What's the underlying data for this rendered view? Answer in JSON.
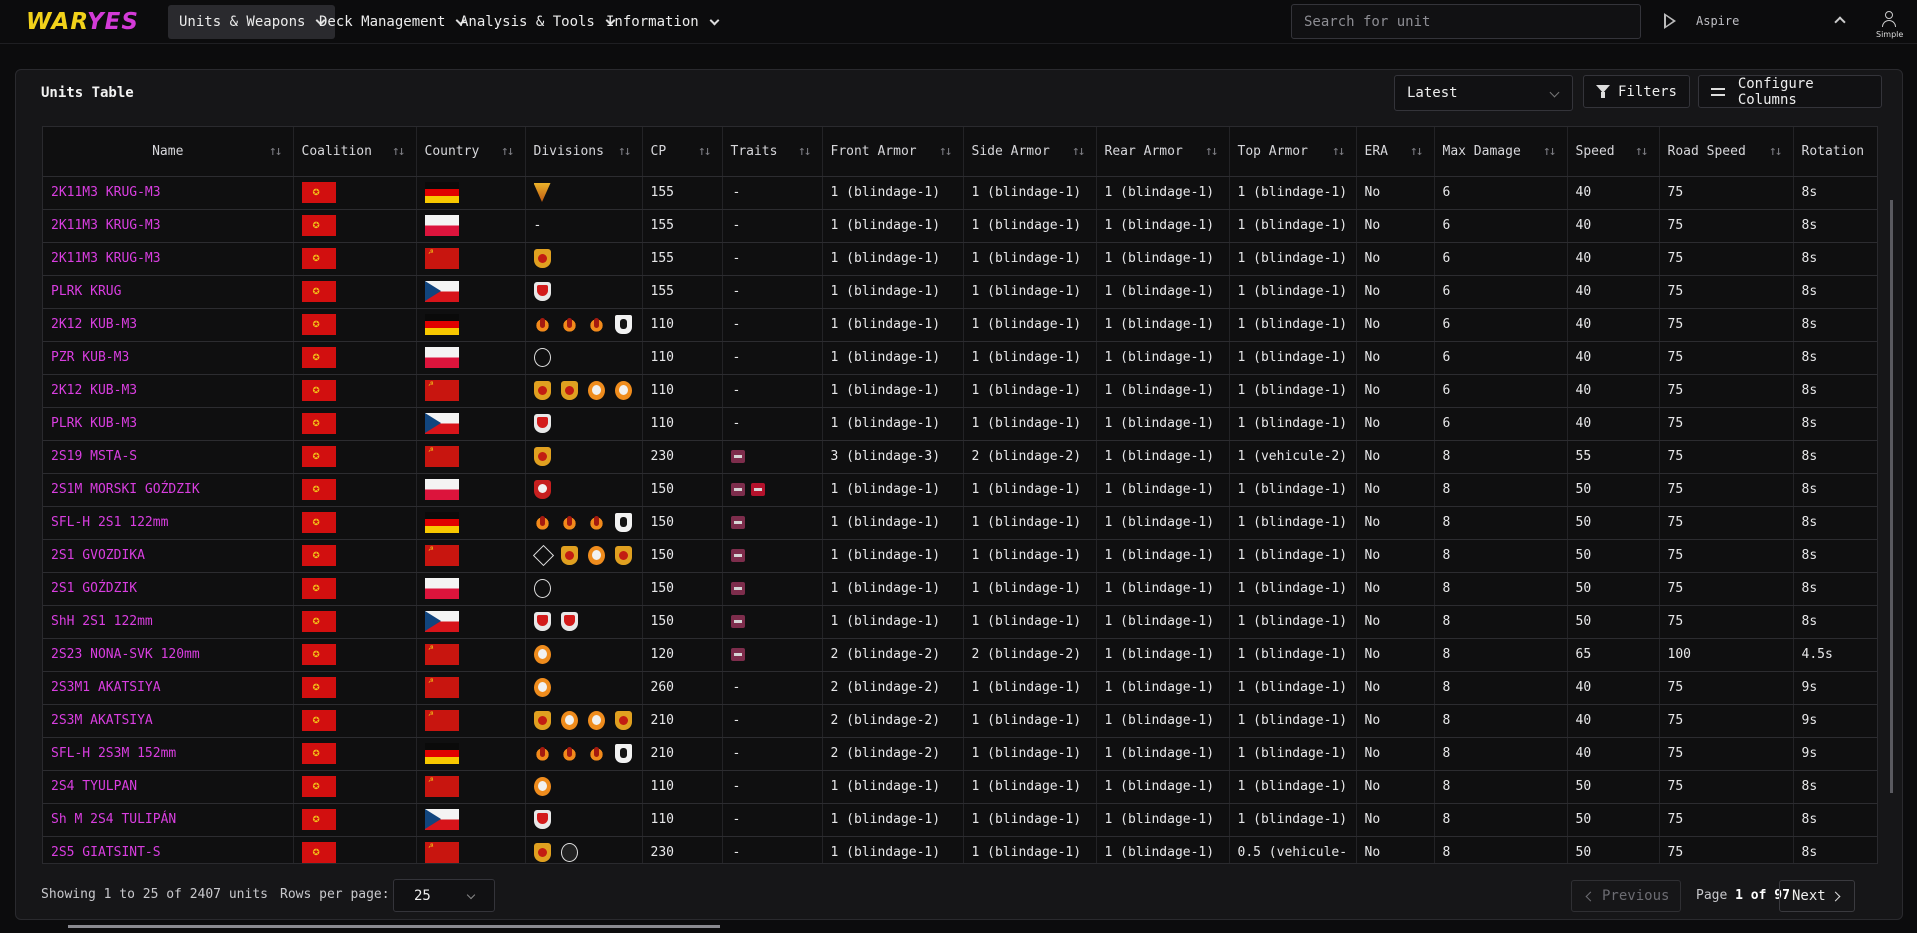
{
  "nav": {
    "logo_part1": "WAR",
    "logo_part2": "YES",
    "items": [
      {
        "label": "Units & Weapons"
      },
      {
        "label": "Deck Management"
      },
      {
        "label": "Analysis & Tools"
      },
      {
        "label": "Information"
      }
    ],
    "search_placeholder": "Search for unit",
    "aspire_label": "Aspire",
    "user_mode": "Simple"
  },
  "panel": {
    "title": "Units Table",
    "version_select": "Latest",
    "filters_label": "Filters",
    "configure_label": "Configure Columns"
  },
  "table": {
    "columns": [
      "Name",
      "Coalition",
      "Country",
      "Divisions",
      "CP",
      "Traits",
      "Front Armor",
      "Side Armor",
      "Rear Armor",
      "Top Armor",
      "ERA",
      "Max Damage",
      "Speed",
      "Road Speed",
      "Rotation"
    ],
    "rows": [
      {
        "name": "2K11M3 KRUG-M3",
        "country": "ddr",
        "divisions": [
          "tri"
        ],
        "cp": "155",
        "traits": [],
        "front": "1 (blindage-1)",
        "side": "1 (blindage-1)",
        "rear": "1 (blindage-1)",
        "top": "1 (blindage-1)",
        "era": "No",
        "dmg": "6",
        "speed": "40",
        "road": "75",
        "rot": "8s"
      },
      {
        "name": "2K11M3 KRUG-M3",
        "country": "pl",
        "divisions": [],
        "cp": "155",
        "traits": [],
        "front": "1 (blindage-1)",
        "side": "1 (blindage-1)",
        "rear": "1 (blindage-1)",
        "top": "1 (blindage-1)",
        "era": "No",
        "dmg": "6",
        "speed": "40",
        "road": "75",
        "rot": "8s"
      },
      {
        "name": "2K11M3 KRUG-M3",
        "country": "su",
        "divisions": [
          "shield"
        ],
        "cp": "155",
        "traits": [],
        "front": "1 (blindage-1)",
        "side": "1 (blindage-1)",
        "rear": "1 (blindage-1)",
        "top": "1 (blindage-1)",
        "era": "No",
        "dmg": "6",
        "speed": "40",
        "road": "75",
        "rot": "8s"
      },
      {
        "name": "PLRK KRUG",
        "country": "cs",
        "divisions": [
          "cz"
        ],
        "cp": "155",
        "traits": [],
        "front": "1 (blindage-1)",
        "side": "1 (blindage-1)",
        "rear": "1 (blindage-1)",
        "top": "1 (blindage-1)",
        "era": "No",
        "dmg": "6",
        "speed": "40",
        "road": "75",
        "rot": "8s"
      },
      {
        "name": "2K12 KUB-M3",
        "country": "ddr",
        "divisions": [
          "flame",
          "flame",
          "flame",
          "bear"
        ],
        "cp": "110",
        "traits": [],
        "front": "1 (blindage-1)",
        "side": "1 (blindage-1)",
        "rear": "1 (blindage-1)",
        "top": "1 (blindage-1)",
        "era": "No",
        "dmg": "6",
        "speed": "40",
        "road": "75",
        "rot": "8s"
      },
      {
        "name": "PZR KUB-M3",
        "country": "pl",
        "divisions": [
          "ring"
        ],
        "cp": "110",
        "traits": [],
        "front": "1 (blindage-1)",
        "side": "1 (blindage-1)",
        "rear": "1 (blindage-1)",
        "top": "1 (blindage-1)",
        "era": "No",
        "dmg": "6",
        "speed": "40",
        "road": "75",
        "rot": "8s"
      },
      {
        "name": "2K12 KUB-M3",
        "country": "su",
        "divisions": [
          "shield",
          "shield",
          "badge",
          "badge"
        ],
        "cp": "110",
        "traits": [],
        "front": "1 (blindage-1)",
        "side": "1 (blindage-1)",
        "rear": "1 (blindage-1)",
        "top": "1 (blindage-1)",
        "era": "No",
        "dmg": "6",
        "speed": "40",
        "road": "75",
        "rot": "8s"
      },
      {
        "name": "PLRK KUB-M3",
        "country": "cs",
        "divisions": [
          "cz"
        ],
        "cp": "110",
        "traits": [],
        "front": "1 (blindage-1)",
        "side": "1 (blindage-1)",
        "rear": "1 (blindage-1)",
        "top": "1 (blindage-1)",
        "era": "No",
        "dmg": "6",
        "speed": "40",
        "road": "75",
        "rot": "8s"
      },
      {
        "name": "2S19 MSTA-S",
        "country": "su",
        "divisions": [
          "shield"
        ],
        "cp": "230",
        "traits": [
          "t"
        ],
        "front": "3 (blindage-3)",
        "side": "2 (blindage-2)",
        "rear": "1 (blindage-1)",
        "top": "1 (vehicule-2)",
        "era": "No",
        "dmg": "8",
        "speed": "55",
        "road": "75",
        "rot": "8s"
      },
      {
        "name": "2S1M MORSKI GOŹDZIK",
        "country": "pl",
        "divisions": [
          "red"
        ],
        "cp": "150",
        "traits": [
          "t",
          "red"
        ],
        "front": "1 (blindage-1)",
        "side": "1 (blindage-1)",
        "rear": "1 (blindage-1)",
        "top": "1 (blindage-1)",
        "era": "No",
        "dmg": "8",
        "speed": "50",
        "road": "75",
        "rot": "8s"
      },
      {
        "name": "SFL-H 2S1 122mm",
        "country": "ddr",
        "divisions": [
          "flame",
          "flame",
          "flame",
          "bear"
        ],
        "cp": "150",
        "traits": [
          "t"
        ],
        "front": "1 (blindage-1)",
        "side": "1 (blindage-1)",
        "rear": "1 (blindage-1)",
        "top": "1 (blindage-1)",
        "era": "No",
        "dmg": "8",
        "speed": "50",
        "road": "75",
        "rot": "8s"
      },
      {
        "name": "2S1 GVOZDIKA",
        "country": "su",
        "divisions": [
          "diamond",
          "shield",
          "badge",
          "shield"
        ],
        "cp": "150",
        "traits": [
          "t"
        ],
        "front": "1 (blindage-1)",
        "side": "1 (blindage-1)",
        "rear": "1 (blindage-1)",
        "top": "1 (blindage-1)",
        "era": "No",
        "dmg": "8",
        "speed": "50",
        "road": "75",
        "rot": "8s"
      },
      {
        "name": "2S1 GOŹDZIK",
        "country": "pl",
        "divisions": [
          "ring"
        ],
        "cp": "150",
        "traits": [
          "t"
        ],
        "front": "1 (blindage-1)",
        "side": "1 (blindage-1)",
        "rear": "1 (blindage-1)",
        "top": "1 (blindage-1)",
        "era": "No",
        "dmg": "8",
        "speed": "50",
        "road": "75",
        "rot": "8s"
      },
      {
        "name": "ShH 2S1 122mm",
        "country": "cs",
        "divisions": [
          "cz",
          "cz"
        ],
        "cp": "150",
        "traits": [
          "t"
        ],
        "front": "1 (blindage-1)",
        "side": "1 (blindage-1)",
        "rear": "1 (blindage-1)",
        "top": "1 (blindage-1)",
        "era": "No",
        "dmg": "8",
        "speed": "50",
        "road": "75",
        "rot": "8s"
      },
      {
        "name": "2S23 NONA-SVK 120mm",
        "country": "su",
        "divisions": [
          "badge"
        ],
        "cp": "120",
        "traits": [
          "t"
        ],
        "front": "2 (blindage-2)",
        "side": "2 (blindage-2)",
        "rear": "1 (blindage-1)",
        "top": "1 (blindage-1)",
        "era": "No",
        "dmg": "8",
        "speed": "65",
        "road": "100",
        "rot": "4.5s"
      },
      {
        "name": "2S3M1 AKATSIYA",
        "country": "su",
        "divisions": [
          "badge"
        ],
        "cp": "260",
        "traits": [],
        "front": "2 (blindage-2)",
        "side": "1 (blindage-1)",
        "rear": "1 (blindage-1)",
        "top": "1 (blindage-1)",
        "era": "No",
        "dmg": "8",
        "speed": "40",
        "road": "75",
        "rot": "9s"
      },
      {
        "name": "2S3M AKATSIYA",
        "country": "su",
        "divisions": [
          "shield",
          "badge",
          "badge",
          "shield"
        ],
        "cp": "210",
        "traits": [],
        "front": "2 (blindage-2)",
        "side": "1 (blindage-1)",
        "rear": "1 (blindage-1)",
        "top": "1 (blindage-1)",
        "era": "No",
        "dmg": "8",
        "speed": "40",
        "road": "75",
        "rot": "9s"
      },
      {
        "name": "SFL-H 2S3M 152mm",
        "country": "ddr",
        "divisions": [
          "flame",
          "flame",
          "flame",
          "bear"
        ],
        "cp": "210",
        "traits": [],
        "front": "2 (blindage-2)",
        "side": "1 (blindage-1)",
        "rear": "1 (blindage-1)",
        "top": "1 (blindage-1)",
        "era": "No",
        "dmg": "8",
        "speed": "40",
        "road": "75",
        "rot": "9s"
      },
      {
        "name": "2S4 TYULPAN",
        "country": "su",
        "divisions": [
          "badge"
        ],
        "cp": "110",
        "traits": [],
        "front": "1 (blindage-1)",
        "side": "1 (blindage-1)",
        "rear": "1 (blindage-1)",
        "top": "1 (blindage-1)",
        "era": "No",
        "dmg": "8",
        "speed": "50",
        "road": "75",
        "rot": "8s"
      },
      {
        "name": "Sh M 2S4 TULIPÁN",
        "country": "cs",
        "divisions": [
          "cz"
        ],
        "cp": "110",
        "traits": [],
        "front": "1 (blindage-1)",
        "side": "1 (blindage-1)",
        "rear": "1 (blindage-1)",
        "top": "1 (blindage-1)",
        "era": "No",
        "dmg": "8",
        "speed": "50",
        "road": "75",
        "rot": "8s"
      },
      {
        "name": "2S5 GIATSINT-S",
        "country": "su",
        "divisions": [
          "shield",
          "dark"
        ],
        "cp": "230",
        "traits": [],
        "front": "1 (blindage-1)",
        "side": "1 (blindage-1)",
        "rear": "1 (blindage-1)",
        "top": "0.5 (vehicule-",
        "era": "No",
        "dmg": "8",
        "speed": "50",
        "road": "75",
        "rot": "8s"
      }
    ],
    "empty_value": "-"
  },
  "footer": {
    "showing": "Showing 1 to 25 of 2407 units",
    "rows_per_page_label": "Rows per page:",
    "rows_per_page": "25",
    "prev_label": "Previous",
    "page_prefix": "Page",
    "page_current": "1 of 97",
    "next_label": "Next"
  },
  "colors": {
    "accent_name": "#d93ee0",
    "logo_yellow": "#f2d21a",
    "logo_pink": "#d43bd8"
  }
}
